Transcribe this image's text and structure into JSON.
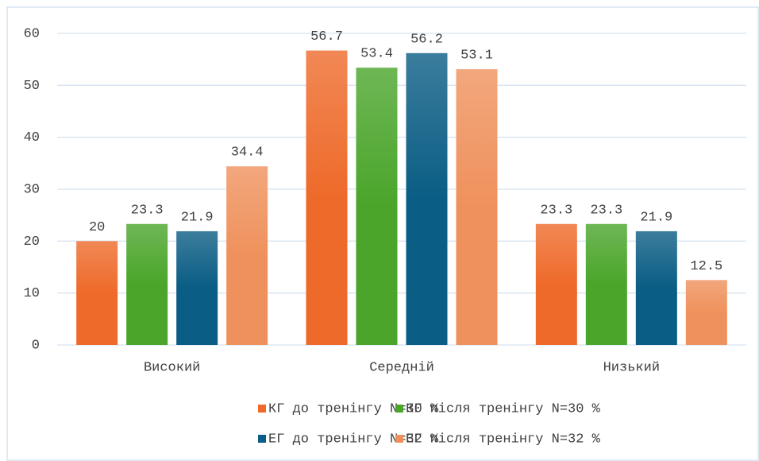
{
  "chart_data": {
    "type": "bar",
    "categories": [
      "Високий",
      "Середній",
      "Низький"
    ],
    "series": [
      {
        "name": "КГ до тренінгу N=30 %",
        "color": "#ee6a2a",
        "values": [
          20,
          56.7,
          23.3
        ]
      },
      {
        "name": "КГ після тренінгу N=30 %",
        "color": "#4aa52a",
        "values": [
          23.3,
          53.4,
          23.3
        ]
      },
      {
        "name": "ЕГ до тренінгу N=32 %",
        "color": "#0a5d84",
        "values": [
          21.9,
          56.2,
          21.9
        ]
      },
      {
        "name": "ЕГ після тренінгу N=32 %",
        "color": "#ef915c",
        "values": [
          34.4,
          53.1,
          12.5
        ]
      }
    ],
    "ylim": [
      0,
      60
    ],
    "yticks": [
      0,
      10,
      20,
      30,
      40,
      50,
      60
    ],
    "grid": true,
    "legend": "bottom"
  }
}
